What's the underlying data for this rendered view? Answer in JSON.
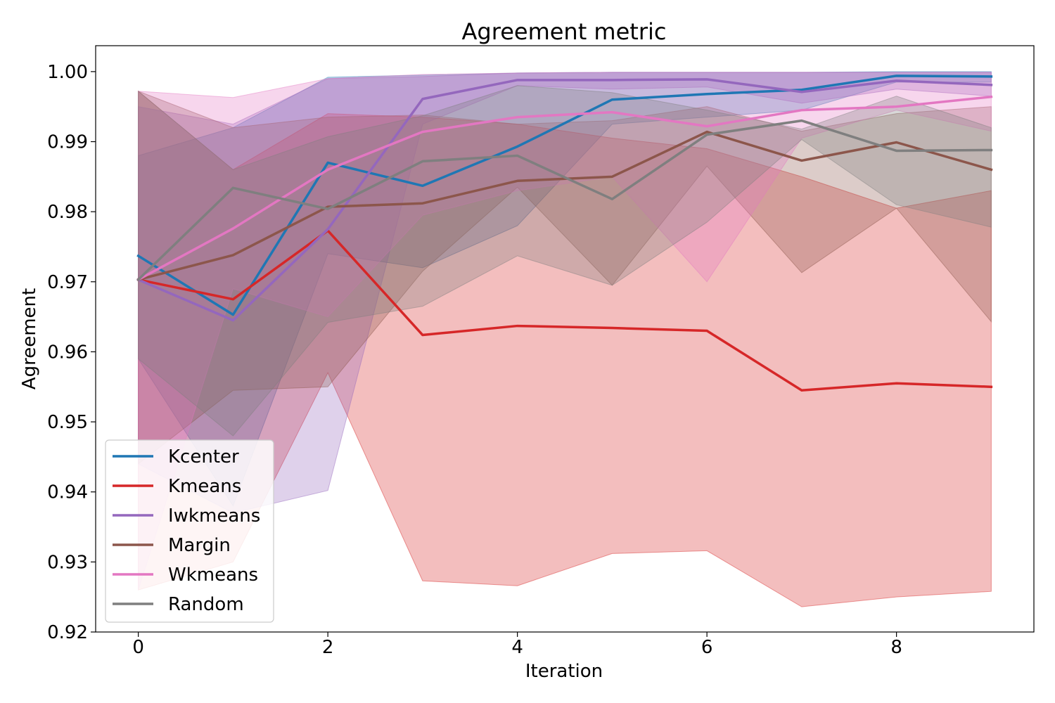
{
  "chart_data": {
    "type": "line",
    "title": "Agreement metric",
    "xlabel": "Iteration",
    "ylabel": "Agreement",
    "xlim": [
      -0.45,
      9.45
    ],
    "ylim": [
      0.92,
      1.0037
    ],
    "x_ticks": [
      0,
      2,
      4,
      6,
      8
    ],
    "y_ticks": [
      0.92,
      0.93,
      0.94,
      0.95,
      0.96,
      0.97,
      0.98,
      0.99,
      1.0
    ],
    "x_tick_labels": [
      "0",
      "2",
      "4",
      "6",
      "8"
    ],
    "y_tick_labels": [
      "0.92",
      "0.93",
      "0.94",
      "0.95",
      "0.96",
      "0.97",
      "0.98",
      "0.99",
      "1.00"
    ],
    "grid": false,
    "legend_position": "lower-left",
    "x": [
      0,
      1,
      2,
      3,
      4,
      5,
      6,
      7,
      8,
      9
    ],
    "series": [
      {
        "name": "Kcenter",
        "color": "#1f77b4",
        "values": [
          0.9737,
          0.9653,
          0.987,
          0.9837,
          0.9893,
          0.996,
          0.9968,
          0.9974,
          0.9994,
          0.9993
        ],
        "lower": [
          0.959,
          0.938,
          0.974,
          0.972,
          0.978,
          0.9925,
          0.9935,
          0.9945,
          0.9985,
          0.9985
        ],
        "upper": [
          0.988,
          0.992,
          0.9992,
          0.9995,
          0.9998,
          0.9999,
          0.9999,
          0.9999,
          1.0,
          1.0
        ]
      },
      {
        "name": "Kmeans",
        "color": "#d62728",
        "values": [
          0.9703,
          0.9675,
          0.9773,
          0.9624,
          0.9637,
          0.9634,
          0.963,
          0.9545,
          0.9555,
          0.955
        ],
        "lower": [
          0.926,
          0.93,
          0.957,
          0.9273,
          0.9266,
          0.9312,
          0.9316,
          0.9236,
          0.925,
          0.9258
        ],
        "upper": [
          0.9972,
          0.986,
          0.994,
          0.9935,
          0.9925,
          0.9905,
          0.989,
          0.985,
          0.9805,
          0.983
        ]
      },
      {
        "name": "Iwkmeans",
        "color": "#9467bd",
        "values": [
          0.9703,
          0.9645,
          0.9775,
          0.9961,
          0.9988,
          0.9988,
          0.9989,
          0.9971,
          0.9987,
          0.9981
        ],
        "lower": [
          0.944,
          0.937,
          0.9402,
          0.9925,
          0.998,
          0.9975,
          0.9978,
          0.9955,
          0.9975,
          0.9965
        ],
        "upper": [
          0.995,
          0.9925,
          0.999,
          0.9993,
          0.9998,
          0.9999,
          0.9999,
          0.9999,
          0.9999,
          0.9999
        ]
      },
      {
        "name": "Margin",
        "color": "#8c564b",
        "values": [
          0.9703,
          0.9738,
          0.9807,
          0.9812,
          0.9844,
          0.985,
          0.9914,
          0.9873,
          0.9899,
          0.986
        ],
        "lower": [
          0.944,
          0.9545,
          0.955,
          0.9715,
          0.9835,
          0.9695,
          0.9865,
          0.9713,
          0.9805,
          0.9643
        ],
        "upper": [
          0.9972,
          0.992,
          0.9935,
          0.9938,
          0.9925,
          0.993,
          0.995,
          0.9915,
          0.994,
          0.995
        ]
      },
      {
        "name": "Wkmeans",
        "color": "#e377c2",
        "values": [
          0.9703,
          0.9776,
          0.986,
          0.9914,
          0.9935,
          0.9942,
          0.9922,
          0.9945,
          0.995,
          0.9964
        ],
        "lower": [
          0.926,
          0.969,
          0.965,
          0.9795,
          0.983,
          0.985,
          0.97,
          0.9905,
          0.9945,
          0.9915
        ],
        "upper": [
          0.9972,
          0.9963,
          0.999,
          0.9996,
          0.9998,
          0.9999,
          0.9999,
          0.9999,
          0.9999,
          0.9999
        ]
      },
      {
        "name": "Random",
        "color": "#7f7f7f",
        "values": [
          0.9703,
          0.9834,
          0.9804,
          0.9872,
          0.988,
          0.9818,
          0.991,
          0.993,
          0.9887,
          0.9888
        ],
        "lower": [
          0.959,
          0.948,
          0.9642,
          0.9665,
          0.9737,
          0.9695,
          0.9785,
          0.9903,
          0.981,
          0.9778
        ],
        "upper": [
          0.9972,
          0.986,
          0.9907,
          0.9937,
          0.998,
          0.997,
          0.9945,
          0.9918,
          0.9965,
          0.992
        ]
      }
    ]
  }
}
